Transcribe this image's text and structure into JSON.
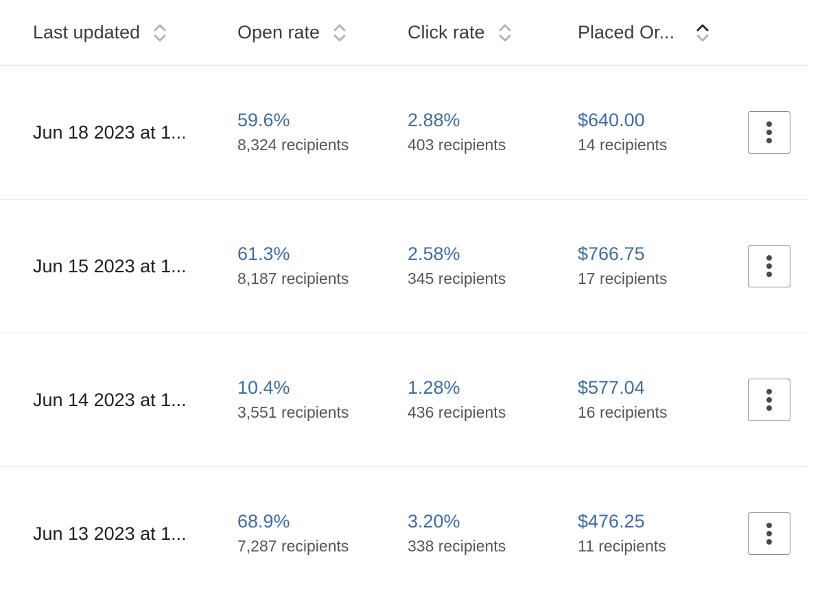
{
  "columns": {
    "last_updated": "Last updated",
    "open_rate": "Open rate",
    "click_rate": "Click rate",
    "placed_orders": "Placed Or..."
  },
  "sort_icons": {
    "inactive": "sort-both-icon",
    "active": "sort-ascending-icon"
  },
  "colors": {
    "metric": "#3a6ea8",
    "sort_inactive": "#b4b4b4",
    "sort_active": "#2b2b2b"
  },
  "rows": [
    {
      "date": "Jun 18 2023 at 1...",
      "open_rate": "59.6%",
      "open_recipients": "8,324 recipients",
      "click_rate": "2.88%",
      "click_recipients": "403 recipients",
      "orders_value": "$640.00",
      "orders_recipients": "14 recipients"
    },
    {
      "date": "Jun 15 2023 at 1...",
      "open_rate": "61.3%",
      "open_recipients": "8,187 recipients",
      "click_rate": "2.58%",
      "click_recipients": "345 recipients",
      "orders_value": "$766.75",
      "orders_recipients": "17 recipients"
    },
    {
      "date": "Jun 14 2023 at 1...",
      "open_rate": "10.4%",
      "open_recipients": "3,551 recipients",
      "click_rate": "1.28%",
      "click_recipients": "436 recipients",
      "orders_value": "$577.04",
      "orders_recipients": "16 recipients"
    },
    {
      "date": "Jun 13 2023 at 1...",
      "open_rate": "68.9%",
      "open_recipients": "7,287 recipients",
      "click_rate": "3.20%",
      "click_recipients": "338 recipients",
      "orders_value": "$476.25",
      "orders_recipients": "11 recipients"
    }
  ]
}
